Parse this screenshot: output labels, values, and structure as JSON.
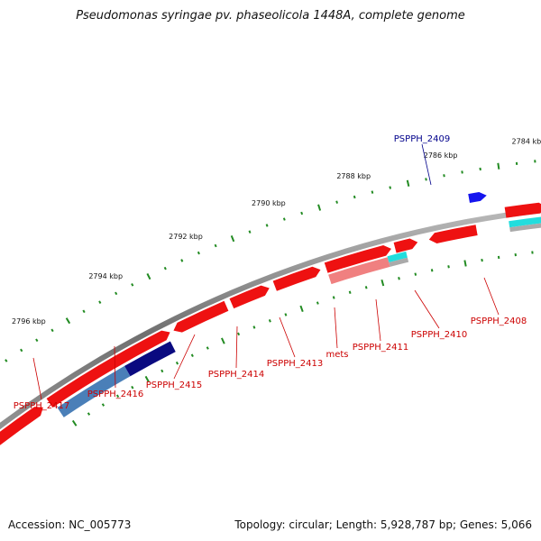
{
  "title": "Pseudomonas syringae pv. phaseolicola 1448A, complete genome",
  "accession_label": "Accession: NC_005773",
  "summary_label": "Topology: circular; Length: 5,928,787 bp; Genes: 5,066",
  "kbp_markers": [
    {
      "label": "2796 kbp"
    },
    {
      "label": "2794 kbp"
    },
    {
      "label": "2792 kbp"
    },
    {
      "label": "2790 kbp"
    },
    {
      "label": "2788 kbp"
    },
    {
      "label": "2786 kbp"
    },
    {
      "label": "2784 kbp"
    }
  ],
  "gene_labels": [
    {
      "text": "PSPPH_2409",
      "color": "#00008b"
    },
    {
      "text": "PSPPH_2408",
      "color": "#cc0000"
    },
    {
      "text": "PSPPH_2410",
      "color": "#cc0000"
    },
    {
      "text": "PSPPH_2411",
      "color": "#cc0000"
    },
    {
      "text": "mets",
      "color": "#cc0000"
    },
    {
      "text": "PSPPH_2413",
      "color": "#cc0000"
    },
    {
      "text": "PSPPH_2414",
      "color": "#cc0000"
    },
    {
      "text": "PSPPH_2415",
      "color": "#cc0000"
    },
    {
      "text": "PSPPH_2416",
      "color": "#cc0000"
    },
    {
      "text": "PSPPH_2417",
      "color": "#cc0000"
    }
  ],
  "colors": {
    "backbone": "#808080",
    "tick": "#228b22",
    "gene_red": "#ee1111",
    "gene_blue": "#1515ee",
    "gene_navy": "#0a0a80",
    "gene_steelblue": "#4a7fb8",
    "gene_cyan": "#22dddd",
    "gene_pink": "#f08080",
    "gene_gray": "#aaaaaa"
  }
}
